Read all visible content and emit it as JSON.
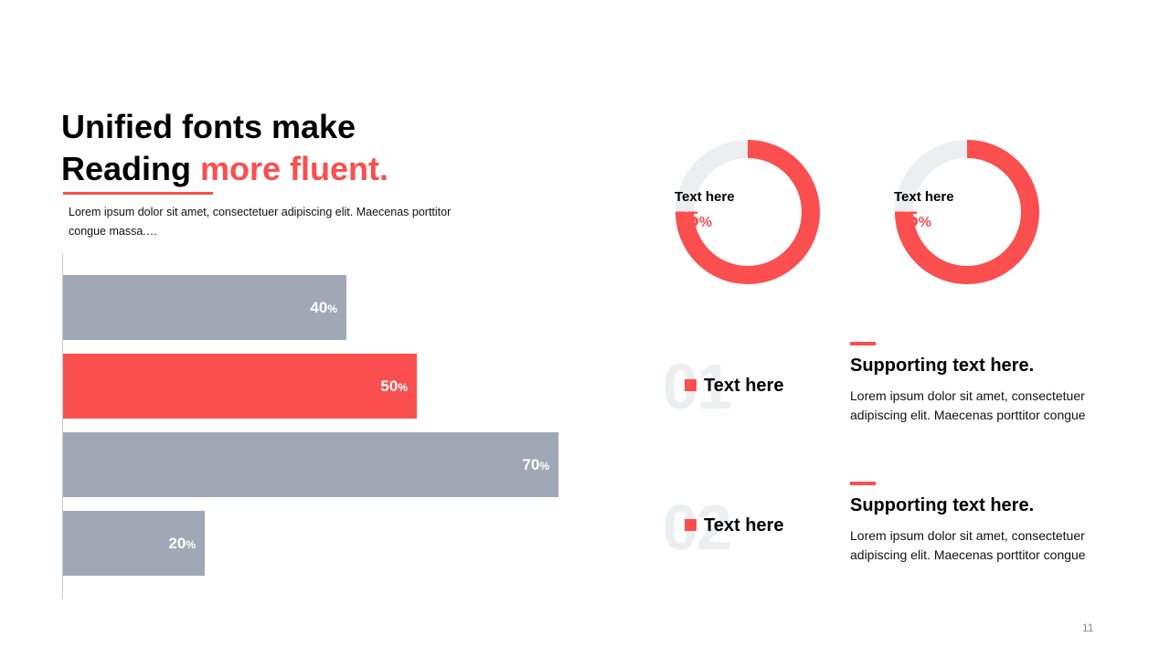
{
  "title": {
    "line1": "Unified fonts make",
    "line2_plain": "Reading ",
    "line2_accent": "more fluent."
  },
  "intro_text": "Lorem ipsum dolor sit amet, consectetuer adipiscing elit. Maecenas porttitor congue massa.…",
  "colors": {
    "accent": "#fb4e4e",
    "bar": "#a1a8b5",
    "track": "#edeef0"
  },
  "chart_data": {
    "type": "bar",
    "orientation": "horizontal",
    "values": [
      40,
      50,
      70,
      20
    ],
    "value_suffix": "%",
    "highlight_index": 1,
    "xlim": [
      0,
      100
    ]
  },
  "donuts": [
    {
      "label": "Text here",
      "value": 75,
      "suffix": "%"
    },
    {
      "label": "Text here",
      "value": 75,
      "suffix": "%"
    }
  ],
  "items": [
    {
      "number": "01",
      "label": "Text here",
      "title": "Supporting text here.",
      "text": "Lorem ipsum dolor sit amet, consectetuer adipiscing elit. Maecenas porttitor congue"
    },
    {
      "number": "02",
      "label": "Text here",
      "title": "Supporting text here.",
      "text": "Lorem ipsum dolor sit amet, consectetuer adipiscing elit. Maecenas porttitor congue"
    }
  ],
  "page_number": "11"
}
